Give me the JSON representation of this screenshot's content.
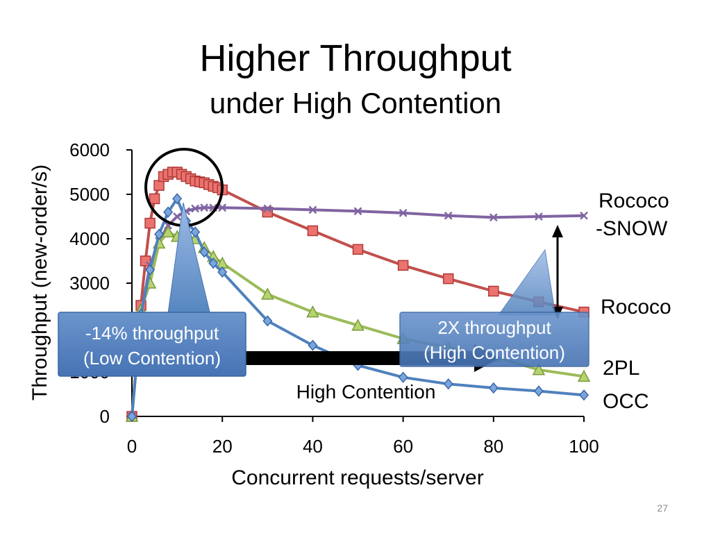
{
  "slide": {
    "title": "Higher Throughput",
    "subtitle": "under High Contention",
    "page_number": "27"
  },
  "chart_data": {
    "type": "line",
    "xlabel": "Concurrent requests/server",
    "ylabel": "Throughput (new-order/s)",
    "xlim": [
      0,
      100
    ],
    "ylim": [
      0,
      6000
    ],
    "x_ticks": [
      0,
      20,
      40,
      60,
      80,
      100
    ],
    "y_ticks": [
      0,
      1000,
      2000,
      3000,
      4000,
      5000,
      6000
    ],
    "grid": false,
    "legend": "inline-right",
    "series": [
      {
        "name": "Rococo",
        "color": "#c0504d",
        "marker": "square",
        "x": [
          0,
          2,
          3,
          4,
          5,
          6,
          7,
          8,
          9,
          10,
          11,
          12,
          13,
          14,
          15,
          16,
          17,
          18,
          19,
          20,
          30,
          40,
          50,
          60,
          70,
          80,
          90,
          100
        ],
        "y": [
          0,
          2500,
          3500,
          4350,
          4900,
          5200,
          5400,
          5450,
          5500,
          5500,
          5450,
          5400,
          5350,
          5300,
          5280,
          5260,
          5220,
          5180,
          5150,
          5100,
          4600,
          4180,
          3760,
          3400,
          3100,
          2820,
          2580,
          2350
        ]
      },
      {
        "name": "Rococo-SNOW",
        "color": "#8064a2",
        "marker": "x",
        "x": [
          0,
          2,
          4,
          6,
          8,
          10,
          12,
          14,
          16,
          18,
          20,
          30,
          40,
          50,
          60,
          70,
          80,
          90,
          100
        ],
        "y": [
          0,
          2300,
          3400,
          3950,
          4300,
          4500,
          4620,
          4680,
          4700,
          4700,
          4700,
          4680,
          4650,
          4620,
          4580,
          4520,
          4480,
          4500,
          4520
        ]
      },
      {
        "name": "2PL",
        "color": "#9bbb59",
        "marker": "triangle",
        "x": [
          0,
          2,
          4,
          6,
          8,
          10,
          12,
          14,
          16,
          18,
          20,
          30,
          40,
          50,
          60,
          70,
          80,
          90,
          100
        ],
        "y": [
          0,
          2400,
          3000,
          3900,
          4150,
          4050,
          4050,
          4000,
          3800,
          3600,
          3450,
          2750,
          2350,
          2050,
          1750,
          1550,
          1350,
          1050,
          900
        ]
      },
      {
        "name": "OCC",
        "color": "#4f81bd",
        "marker": "diamond",
        "x": [
          0,
          2,
          4,
          6,
          8,
          10,
          12,
          14,
          16,
          18,
          20,
          30,
          40,
          50,
          60,
          70,
          80,
          90,
          100
        ],
        "y": [
          0,
          2300,
          3300,
          4100,
          4600,
          4900,
          4400,
          4150,
          3700,
          3450,
          3250,
          2150,
          1600,
          1150,
          880,
          730,
          640,
          570,
          480
        ]
      }
    ],
    "series_labels": [
      {
        "text": "Rococo",
        "color": "#000000"
      },
      {
        "text": "-SNOW",
        "color": "#000000"
      },
      {
        "text": "Rococo",
        "color": "#000000"
      },
      {
        "text": "2PL",
        "color": "#000000"
      },
      {
        "text": "OCC",
        "color": "#000000"
      }
    ],
    "annotations": {
      "low_contention_box": [
        "-14% throughput",
        "(Low Contention)"
      ],
      "high_contention_box": [
        "2X throughput",
        "(High Contention)"
      ],
      "high_contention_label": "High Contention",
      "callout_fill": "#4f81bd",
      "callout_text_color": "#ffffff"
    }
  }
}
